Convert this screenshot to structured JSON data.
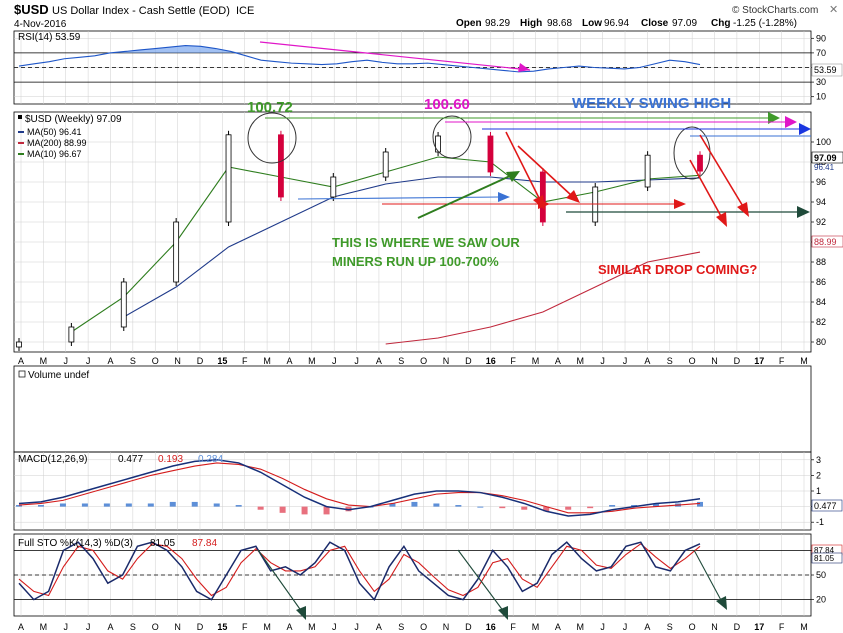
{
  "header": {
    "symbol": "$USD",
    "name": "US Dollar Index - Cash Settle (EOD)",
    "exchange": "ICE",
    "date": "4-Nov-2016",
    "brand": "© StockCharts.com",
    "open_label": "Open",
    "open": "98.29",
    "high_label": "High",
    "high": "98.68",
    "low_label": "Low",
    "low": "96.94",
    "close_label": "Close",
    "close": "97.09",
    "chg_label": "Chg",
    "chg": "-1.25 (-1.28%)"
  },
  "colors": {
    "bg": "#ffffff",
    "grid": "#cfcfcf",
    "axis": "#000000",
    "up": "#000000",
    "down": "#d4003c",
    "ma50": "#1f3a8a",
    "ma200": "#c0283c",
    "ma10": "#2e7d1e",
    "rsi": "#1e56c8",
    "rsi_fill": "#7aa6ee",
    "macd": "#17307a",
    "macd_signal": "#d41c1c",
    "macd_hist": "#5d8fd8",
    "macd_hist_neg": "#e8707e",
    "sto_k": "#1a2a6a",
    "sto_d": "#d41c1c",
    "ann_green": "#3f9a2a",
    "ann_magenta": "#e016c8",
    "ann_blue": "#3a72d4",
    "ann_red": "#e01818",
    "ann_dark": "#1f4a3a"
  },
  "x_axis": {
    "labels": [
      "A",
      "M",
      "J",
      "J",
      "A",
      "S",
      "O",
      "N",
      "D",
      "15",
      "F",
      "M",
      "A",
      "M",
      "J",
      "J",
      "A",
      "S",
      "O",
      "N",
      "D",
      "16",
      "F",
      "M",
      "A",
      "M",
      "J",
      "J",
      "A",
      "S",
      "O",
      "N",
      "D",
      "17",
      "F",
      "M"
    ],
    "bold_labels": [
      "15",
      "16",
      "17"
    ]
  },
  "rsi_panel": {
    "label": "RSI(14) 53.59",
    "ticks": [
      "90",
      "70",
      "50",
      "30",
      "10"
    ],
    "last_value": "53.59",
    "ylim": [
      0,
      100
    ],
    "values": [
      52,
      55,
      58,
      62,
      64,
      66,
      70,
      72,
      74,
      76,
      78,
      80,
      79,
      76,
      72,
      66,
      60,
      58,
      56,
      55,
      54,
      55,
      58,
      60,
      57,
      55,
      55,
      56,
      54,
      52,
      50,
      48,
      46,
      44,
      45,
      48,
      50,
      52,
      50,
      49,
      48,
      50,
      55,
      60,
      58,
      54
    ]
  },
  "price_panel": {
    "label": "$USD (Weekly) 97.09",
    "ma50_label": "MA(50) 96.41",
    "ma200_label": "MA(200) 88.99",
    "ma10_label": "MA(10) 96.67",
    "ticks": [
      "100",
      "98",
      "96",
      "94",
      "92",
      "90",
      "88",
      "86",
      "84",
      "82",
      "80"
    ],
    "ylim": [
      79,
      103
    ],
    "tag_close": "97.09",
    "tag_ma50": "96.41",
    "tag_ma200": "88.99"
  },
  "annotations": {
    "peak1": "100.72",
    "peak2": "100.60",
    "swing_high": "WEEKLY SWING HIGH",
    "miners_line1": "THIS IS WHERE WE SAW OUR",
    "miners_line2": "MINERS RUN UP 100-700%",
    "similar_drop": "SIMILAR DROP COMING?"
  },
  "volume_panel": {
    "label": "Volume undef"
  },
  "macd_panel": {
    "label": "MACD(12,26,9)",
    "macd": "0.477",
    "signal": "0.193",
    "hist": "0.284",
    "ticks": [
      "3",
      "2",
      "1",
      "0",
      "-1"
    ],
    "tag_macd": "0.477",
    "ylim": [
      -1.5,
      3.5
    ],
    "macd_values": [
      0.2,
      0.3,
      0.6,
      1.0,
      1.4,
      1.8,
      2.2,
      2.6,
      2.9,
      3.0,
      2.8,
      2.2,
      1.4,
      0.6,
      0.0,
      -0.2,
      0.0,
      0.4,
      0.8,
      1.0,
      1.0,
      0.9,
      0.6,
      0.2,
      -0.3,
      -0.6,
      -0.5,
      -0.2,
      0.0,
      0.2,
      0.3,
      0.5
    ],
    "signal_values": [
      0.1,
      0.2,
      0.4,
      0.8,
      1.2,
      1.6,
      2.0,
      2.3,
      2.6,
      2.8,
      2.7,
      2.4,
      1.8,
      1.1,
      0.5,
      0.1,
      0.0,
      0.2,
      0.5,
      0.8,
      0.9,
      0.9,
      0.7,
      0.4,
      0.0,
      -0.4,
      -0.4,
      -0.3,
      -0.1,
      0.0,
      0.1,
      0.2
    ]
  },
  "sto_panel": {
    "label": "Full STO %K(14,3) %D(3)",
    "k": "81.05",
    "d": "87.84",
    "ticks": [
      "80",
      "50",
      "20"
    ],
    "tag_d": "87.84",
    "tag_k": "81.05",
    "ylim": [
      0,
      100
    ],
    "k_values": [
      40,
      20,
      30,
      80,
      90,
      70,
      40,
      50,
      85,
      90,
      80,
      60,
      30,
      20,
      50,
      80,
      85,
      55,
      60,
      50,
      65,
      90,
      80,
      40,
      20,
      60,
      85,
      55,
      40,
      25,
      20,
      45,
      80,
      60,
      30,
      40,
      75,
      90,
      70,
      55,
      60,
      85,
      90,
      60,
      55,
      80,
      88
    ],
    "d_values": [
      45,
      30,
      25,
      60,
      85,
      80,
      55,
      45,
      70,
      88,
      85,
      70,
      45,
      25,
      35,
      65,
      82,
      65,
      55,
      55,
      60,
      80,
      85,
      55,
      30,
      45,
      75,
      65,
      48,
      32,
      25,
      35,
      65,
      70,
      45,
      35,
      60,
      85,
      80,
      62,
      58,
      75,
      88,
      72,
      58,
      70,
      85
    ]
  },
  "chart_data": {
    "type": "line",
    "title": "$USD US Dollar Index - Cash Settle (EOD)",
    "subtitle": "$USD (Weekly) 97.09",
    "xlabel": "",
    "ylabel": "",
    "x": [
      "Apr-2014",
      "Jul-2014",
      "Oct-2014",
      "Jan-2015",
      "Mar-2015",
      "May-2015",
      "Aug-2015",
      "Nov-2015",
      "Dec-2015",
      "Feb-2016",
      "May-2016",
      "Aug-2016",
      "Oct-2016",
      "Nov-2016"
    ],
    "series": [
      {
        "name": "$USD (Weekly)",
        "values": [
          80.0,
          81.5,
          86.0,
          92.0,
          100.72,
          94.5,
          96.5,
          99.0,
          100.6,
          97.0,
          92.0,
          95.5,
          98.68,
          97.09
        ]
      },
      {
        "name": "MA(50)",
        "values": [
          null,
          null,
          82.5,
          85.5,
          89.5,
          92.0,
          94.5,
          95.8,
          96.5,
          96.5,
          96.0,
          96.0,
          96.2,
          96.41
        ]
      },
      {
        "name": "MA(200)",
        "values": [
          null,
          null,
          null,
          null,
          null,
          null,
          null,
          79.8,
          80.4,
          81.5,
          83.0,
          85.5,
          88.0,
          88.99
        ]
      },
      {
        "name": "MA(10)",
        "values": [
          null,
          81.0,
          84.5,
          90.0,
          97.5,
          96.5,
          95.5,
          97.0,
          98.5,
          98.0,
          94.0,
          95.0,
          96.3,
          96.67
        ]
      }
    ],
    "ylim": [
      79,
      103
    ],
    "grid": true,
    "legend": "top-left"
  }
}
